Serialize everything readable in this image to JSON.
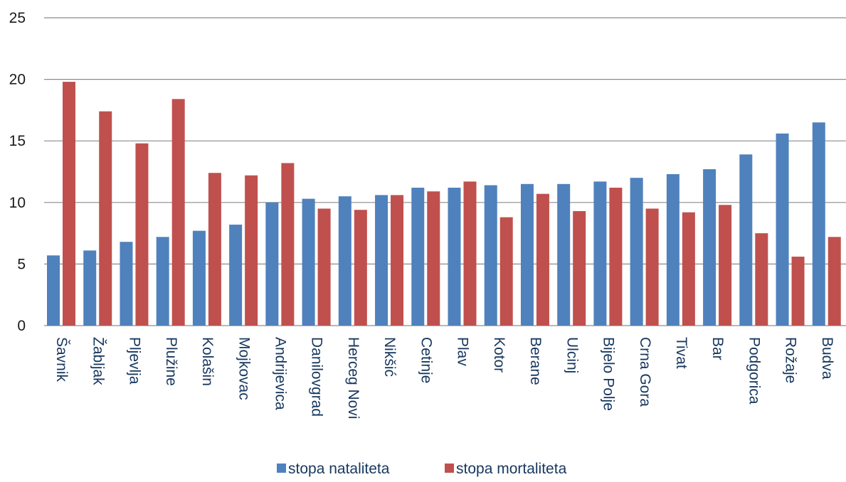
{
  "chart_data": {
    "type": "bar",
    "categories": [
      "Šavnik",
      "Žabljak",
      "Pljevlja",
      "Plužine",
      "Kolašin",
      "Mojkovac",
      "Andrijevica",
      "Danilovgrad",
      "Herceg Novi",
      "Nikšić",
      "Cetinje",
      "Plav",
      "Kotor",
      "Berane",
      "Ulcinj",
      "Bijelo Polje",
      "Crna Gora",
      "Tivat",
      "Bar",
      "Podgorica",
      "Rožaje",
      "Budva"
    ],
    "series": [
      {
        "name": "stopa nataliteta",
        "color": "#4f81bd",
        "values": [
          5.7,
          6.1,
          6.8,
          7.2,
          7.7,
          8.2,
          10.0,
          10.3,
          10.5,
          10.6,
          11.2,
          11.2,
          11.4,
          11.5,
          11.5,
          11.7,
          12.0,
          12.3,
          12.7,
          13.9,
          15.6,
          16.5
        ]
      },
      {
        "name": "stopa mortaliteta",
        "color": "#c0504d",
        "values": [
          19.8,
          17.4,
          14.8,
          18.4,
          12.4,
          12.2,
          13.2,
          9.5,
          9.4,
          10.6,
          10.9,
          11.7,
          8.8,
          10.7,
          9.3,
          11.2,
          9.5,
          9.2,
          9.8,
          7.5,
          5.6,
          7.2
        ]
      }
    ],
    "yticks": [
      "0",
      "5",
      "10",
      "15",
      "20",
      "25"
    ],
    "ylim": [
      0,
      25
    ],
    "grid": true,
    "legend_position": "bottom",
    "title": "",
    "xlabel": "",
    "ylabel": ""
  }
}
